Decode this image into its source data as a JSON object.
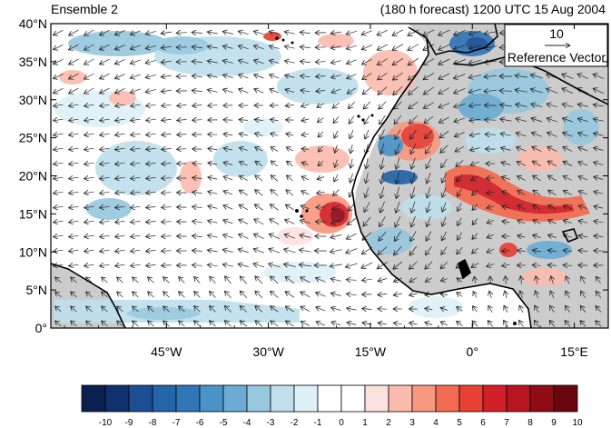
{
  "header": {
    "left_title": "Ensemble 2",
    "right_title": "(180 h forecast) 1200 UTC 15 Aug 2004"
  },
  "map": {
    "lat_labels": [
      "40°N",
      "35°N",
      "30°N",
      "25°N",
      "20°N",
      "15°N",
      "10°N",
      "5°N",
      "0°"
    ],
    "lon_labels": [
      "45°W",
      "30°W",
      "15°W",
      "0°",
      "15°E"
    ],
    "lat_range": [
      0,
      40
    ],
    "lon_range": [
      -62,
      20
    ],
    "land_color": "#cccccc",
    "coast_color": "#000000"
  },
  "reference_vector": {
    "magnitude": "10",
    "label": "Reference Vector"
  },
  "colorbar": {
    "labels": [
      "-10",
      "-9",
      "-8",
      "-7",
      "-6",
      "-5",
      "-4",
      "-3",
      "-2",
      "-1",
      "0",
      "1",
      "2",
      "3",
      "4",
      "5",
      "6",
      "7",
      "8",
      "9",
      "10"
    ],
    "colors": [
      "#0a2150",
      "#0f316e",
      "#1b4f93",
      "#2464a8",
      "#2f76b8",
      "#4a94c8",
      "#6cacd4",
      "#97c8de",
      "#bfe0ec",
      "#def1f7",
      "#ffffff",
      "#ffffff",
      "#fde2e2",
      "#fbbcae",
      "#f89880",
      "#f26b50",
      "#e84135",
      "#d32028",
      "#b71520",
      "#8f0c15",
      "#6a0610"
    ]
  }
}
